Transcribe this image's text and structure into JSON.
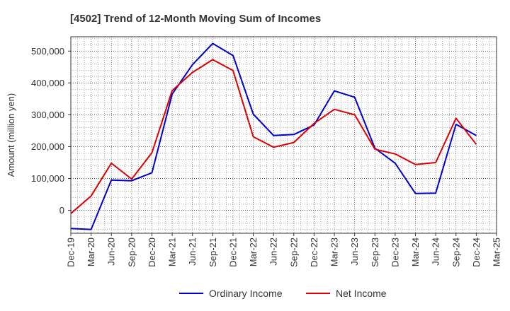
{
  "chart_data": {
    "type": "line",
    "title": "[4502]  Trend of 12-Month Moving Sum of Incomes",
    "xlabel": "",
    "ylabel": "Amount (million yen)",
    "x": [
      "Dec-19",
      "Mar-20",
      "Jun-20",
      "Sep-20",
      "Dec-20",
      "Mar-21",
      "Jun-21",
      "Sep-21",
      "Dec-21",
      "Mar-22",
      "Jun-22",
      "Sep-22",
      "Dec-22",
      "Mar-23",
      "Jun-23",
      "Sep-23",
      "Dec-23",
      "Mar-24",
      "Jun-24",
      "Sep-24",
      "Dec-24",
      "Mar-25"
    ],
    "ylim": [
      -72000,
      545000
    ],
    "yticks": [
      0,
      100000,
      200000,
      300000,
      400000,
      500000
    ],
    "ytick_labels": [
      "0",
      "100,000",
      "200,000",
      "300,000",
      "400,000",
      "500,000"
    ],
    "grid": true,
    "legend_position": "bottom",
    "series": [
      {
        "name": "Ordinary Income",
        "color": "#0000cc",
        "values": [
          -57000,
          -60000,
          95000,
          93000,
          118000,
          365000,
          457000,
          524000,
          486000,
          302000,
          235000,
          238000,
          268000,
          375000,
          355000,
          195000,
          148000,
          53000,
          54000,
          270000,
          235000,
          null
        ]
      },
      {
        "name": "Net Income",
        "color": "#dd0000",
        "values": [
          -10000,
          45000,
          148000,
          98000,
          181000,
          376000,
          433000,
          473000,
          439000,
          231000,
          198000,
          213000,
          273000,
          317000,
          300000,
          192000,
          177000,
          144000,
          150000,
          289000,
          207000,
          null
        ]
      }
    ]
  }
}
